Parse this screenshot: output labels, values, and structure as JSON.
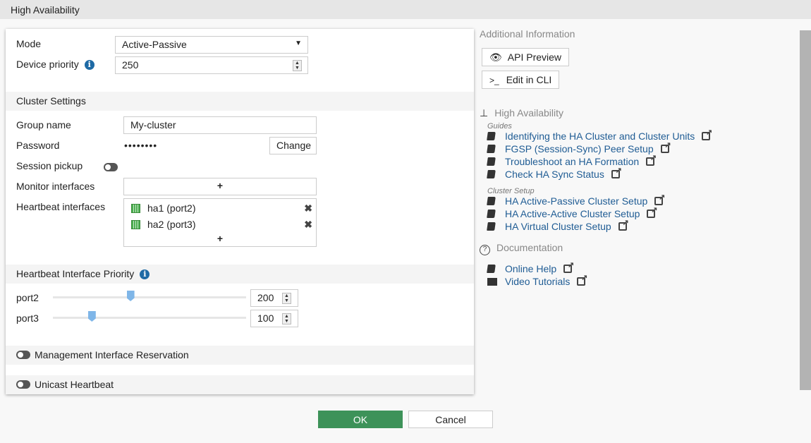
{
  "header": {
    "title": "High Availability"
  },
  "form": {
    "mode_label": "Mode",
    "mode_value": "Active-Passive",
    "priority_label": "Device priority",
    "priority_value": "250",
    "cluster_section": "Cluster Settings",
    "group_label": "Group name",
    "group_value": "My-cluster",
    "password_label": "Password",
    "password_value": "••••••••",
    "change_label": "Change",
    "session_label": "Session pickup",
    "session_enabled": false,
    "monitor_label": "Monitor interfaces",
    "add": "+",
    "heartbeat_label": "Heartbeat interfaces",
    "heartbeat_items": [
      "ha1 (port2)",
      "ha2 (port3)"
    ],
    "hb_priority_section": "Heartbeat Interface Priority",
    "ports": [
      {
        "name": "port2",
        "value": "200",
        "slider_fraction": 0.4
      },
      {
        "name": "port3",
        "value": "100",
        "slider_fraction": 0.2
      }
    ],
    "mgmt_label": "Management Interface Reservation",
    "mgmt_enabled": false,
    "unicast_label": "Unicast Heartbeat",
    "unicast_enabled": false
  },
  "side": {
    "title": "Additional Information",
    "api_preview": "API Preview",
    "edit_cli": "Edit in CLI",
    "ha_title": "High Availability",
    "guides_label": "Guides",
    "guides": [
      "Identifying the HA Cluster and Cluster Units",
      "FGSP (Session-Sync) Peer Setup",
      "Troubleshoot an HA Formation",
      "Check HA Sync Status"
    ],
    "cluster_setup_label": "Cluster Setup",
    "cluster_setup": [
      "HA Active-Passive Cluster Setup",
      "HA Active-Active Cluster Setup",
      "HA Virtual Cluster Setup"
    ],
    "doc_title": "Documentation",
    "online_help": "Online Help",
    "video_tutorials": "Video Tutorials"
  },
  "footer": {
    "ok": "OK",
    "cancel": "Cancel"
  },
  "colors": {
    "link": "#1f5c94",
    "ok": "#3d9259",
    "slider": "#7fb6e8"
  }
}
